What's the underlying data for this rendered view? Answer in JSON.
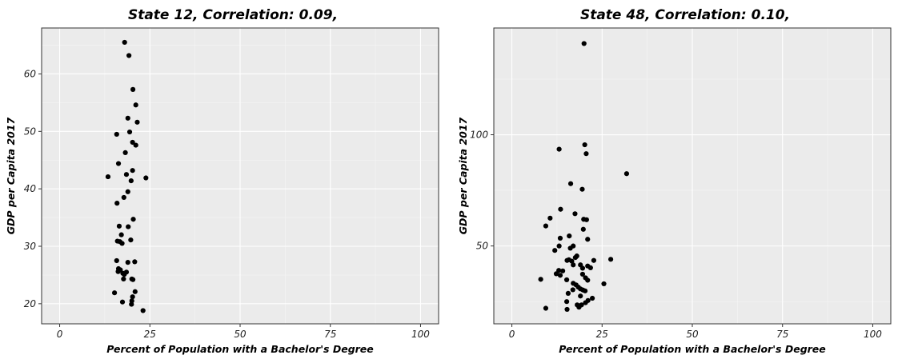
{
  "chart_data": [
    {
      "type": "scatter",
      "title": "State 12, Correlation: 0.09,",
      "xlabel": "Percent of Population with a Bachelor's Degree",
      "ylabel": "GDP per Capita 2017",
      "xlim": [
        -5,
        105
      ],
      "ylim": [
        16.5,
        68
      ],
      "x_ticks": [
        0,
        25,
        50,
        75,
        100
      ],
      "y_ticks": [
        20,
        30,
        40,
        50,
        60
      ],
      "grid": true,
      "points": [
        {
          "x": 18,
          "y": 65.5
        },
        {
          "x": 19.2,
          "y": 63.2
        },
        {
          "x": 20.3,
          "y": 57.3
        },
        {
          "x": 21.1,
          "y": 54.6
        },
        {
          "x": 18.9,
          "y": 52.3
        },
        {
          "x": 21.5,
          "y": 51.6
        },
        {
          "x": 15.8,
          "y": 49.5
        },
        {
          "x": 19.4,
          "y": 49.9
        },
        {
          "x": 20.2,
          "y": 48.1
        },
        {
          "x": 21.1,
          "y": 47.6
        },
        {
          "x": 18.2,
          "y": 46.3
        },
        {
          "x": 16.3,
          "y": 44.4
        },
        {
          "x": 20.2,
          "y": 43.2
        },
        {
          "x": 18.5,
          "y": 42.5
        },
        {
          "x": 13.4,
          "y": 42.1
        },
        {
          "x": 23.9,
          "y": 41.9
        },
        {
          "x": 19.8,
          "y": 41.4
        },
        {
          "x": 18.9,
          "y": 39.5
        },
        {
          "x": 17.8,
          "y": 38.5
        },
        {
          "x": 15.9,
          "y": 37.5
        },
        {
          "x": 20.4,
          "y": 34.7
        },
        {
          "x": 19.0,
          "y": 33.4
        },
        {
          "x": 16.5,
          "y": 33.5
        },
        {
          "x": 17.1,
          "y": 32.0
        },
        {
          "x": 16.0,
          "y": 30.9
        },
        {
          "x": 16.7,
          "y": 30.8
        },
        {
          "x": 17.3,
          "y": 30.5
        },
        {
          "x": 19.7,
          "y": 31.1
        },
        {
          "x": 15.8,
          "y": 27.5
        },
        {
          "x": 18.9,
          "y": 27.2
        },
        {
          "x": 20.8,
          "y": 27.3
        },
        {
          "x": 16.3,
          "y": 26.1
        },
        {
          "x": 16.8,
          "y": 25.9
        },
        {
          "x": 16.2,
          "y": 25.6
        },
        {
          "x": 17.5,
          "y": 25.3
        },
        {
          "x": 18.5,
          "y": 25.5
        },
        {
          "x": 17.9,
          "y": 25.1
        },
        {
          "x": 17.7,
          "y": 24.3
        },
        {
          "x": 20.0,
          "y": 24.3
        },
        {
          "x": 20.3,
          "y": 24.2
        },
        {
          "x": 20.9,
          "y": 22.1
        },
        {
          "x": 15.2,
          "y": 21.9
        },
        {
          "x": 20.2,
          "y": 21.2
        },
        {
          "x": 17.4,
          "y": 20.3
        },
        {
          "x": 20.0,
          "y": 20.5
        },
        {
          "x": 19.9,
          "y": 19.9
        },
        {
          "x": 23.1,
          "y": 18.8
        }
      ]
    },
    {
      "type": "scatter",
      "title": "State 48, Correlation: 0.10,",
      "xlabel": "Percent of Population with a Bachelor's Degree",
      "ylabel": "GDP per Capita 2017",
      "xlim": [
        -5,
        105
      ],
      "ylim": [
        15,
        148
      ],
      "x_ticks": [
        0,
        25,
        50,
        75,
        100
      ],
      "y_ticks": [
        50,
        100
      ],
      "grid": true,
      "points": [
        {
          "x": 20.0,
          "y": 141
        },
        {
          "x": 20.2,
          "y": 95.5
        },
        {
          "x": 13.1,
          "y": 93.5
        },
        {
          "x": 20.6,
          "y": 91.5
        },
        {
          "x": 31.8,
          "y": 82.5
        },
        {
          "x": 16.3,
          "y": 78
        },
        {
          "x": 19.5,
          "y": 75.5
        },
        {
          "x": 13.5,
          "y": 66.5
        },
        {
          "x": 17.5,
          "y": 64.5
        },
        {
          "x": 10.6,
          "y": 62.5
        },
        {
          "x": 19.9,
          "y": 62
        },
        {
          "x": 20.7,
          "y": 61.8
        },
        {
          "x": 9.4,
          "y": 59
        },
        {
          "x": 19.8,
          "y": 57.5
        },
        {
          "x": 15.9,
          "y": 54.5
        },
        {
          "x": 13.4,
          "y": 53.5
        },
        {
          "x": 21.0,
          "y": 53
        },
        {
          "x": 13.1,
          "y": 50
        },
        {
          "x": 17.0,
          "y": 50
        },
        {
          "x": 16.2,
          "y": 49
        },
        {
          "x": 11.9,
          "y": 48
        },
        {
          "x": 18.0,
          "y": 45.5
        },
        {
          "x": 17.6,
          "y": 44.8
        },
        {
          "x": 15.8,
          "y": 43.8
        },
        {
          "x": 15.3,
          "y": 43.5
        },
        {
          "x": 16.6,
          "y": 43.2
        },
        {
          "x": 22.7,
          "y": 43.5
        },
        {
          "x": 27.4,
          "y": 44
        },
        {
          "x": 17.0,
          "y": 41.5
        },
        {
          "x": 19.0,
          "y": 41.5
        },
        {
          "x": 21.0,
          "y": 41
        },
        {
          "x": 21.8,
          "y": 40.2
        },
        {
          "x": 19.6,
          "y": 40
        },
        {
          "x": 13.0,
          "y": 39
        },
        {
          "x": 14.1,
          "y": 38.8
        },
        {
          "x": 12.3,
          "y": 37.5
        },
        {
          "x": 19.6,
          "y": 37.3
        },
        {
          "x": 13.4,
          "y": 36.8
        },
        {
          "x": 20.4,
          "y": 35.7
        },
        {
          "x": 8.0,
          "y": 35
        },
        {
          "x": 15.2,
          "y": 34.8
        },
        {
          "x": 21.0,
          "y": 34.6
        },
        {
          "x": 17.0,
          "y": 33.2
        },
        {
          "x": 17.8,
          "y": 32.5
        },
        {
          "x": 25.5,
          "y": 33
        },
        {
          "x": 18.4,
          "y": 31.5
        },
        {
          "x": 19.0,
          "y": 30.7
        },
        {
          "x": 19.7,
          "y": 30.2
        },
        {
          "x": 16.9,
          "y": 30.3
        },
        {
          "x": 20.3,
          "y": 29.8
        },
        {
          "x": 15.6,
          "y": 28.7
        },
        {
          "x": 19.0,
          "y": 27.5
        },
        {
          "x": 22.3,
          "y": 26.5
        },
        {
          "x": 21.1,
          "y": 25.5
        },
        {
          "x": 15.2,
          "y": 25
        },
        {
          "x": 20.4,
          "y": 24.5
        },
        {
          "x": 18.1,
          "y": 23.5
        },
        {
          "x": 19.3,
          "y": 23.5
        },
        {
          "x": 18.6,
          "y": 22.5
        },
        {
          "x": 9.4,
          "y": 22
        },
        {
          "x": 15.3,
          "y": 21.5
        }
      ]
    }
  ]
}
